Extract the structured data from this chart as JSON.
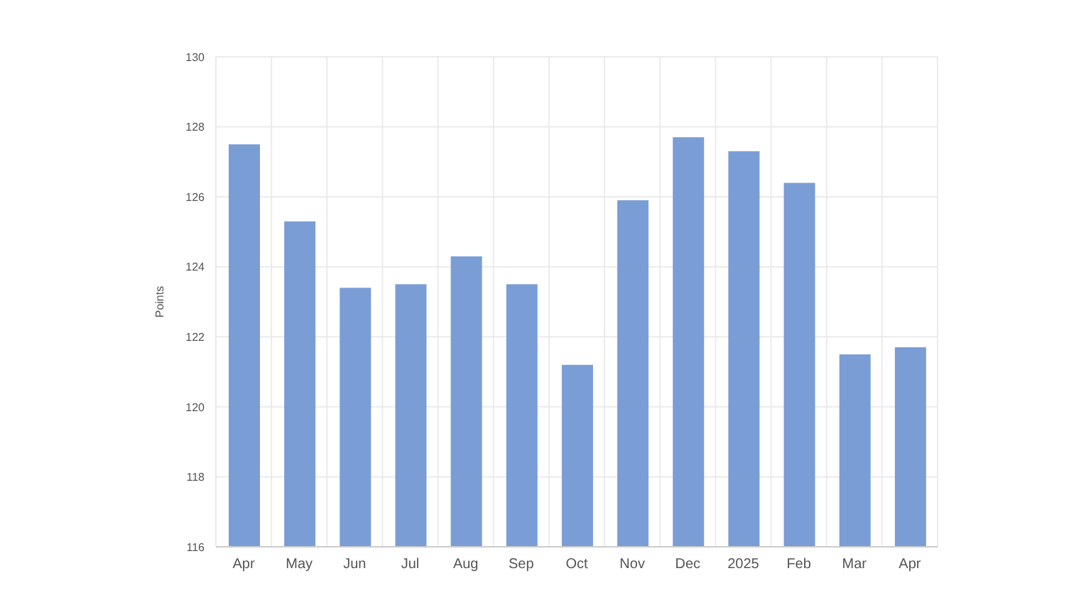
{
  "chart_data": {
    "type": "bar",
    "ylabel": "Points",
    "categories": [
      "Apr",
      "May",
      "Jun",
      "Jul",
      "Aug",
      "Sep",
      "Oct",
      "Nov",
      "Dec",
      "2025",
      "Feb",
      "Mar",
      "Apr"
    ],
    "values": [
      127.5,
      125.3,
      123.4,
      123.5,
      124.3,
      123.5,
      121.2,
      125.9,
      127.7,
      127.3,
      126.4,
      121.5,
      121.7
    ],
    "color": "#7b9dd6",
    "ylim": [
      116,
      130
    ],
    "yticks": [
      116,
      118,
      120,
      122,
      124,
      126,
      128,
      130
    ],
    "grid": true
  }
}
